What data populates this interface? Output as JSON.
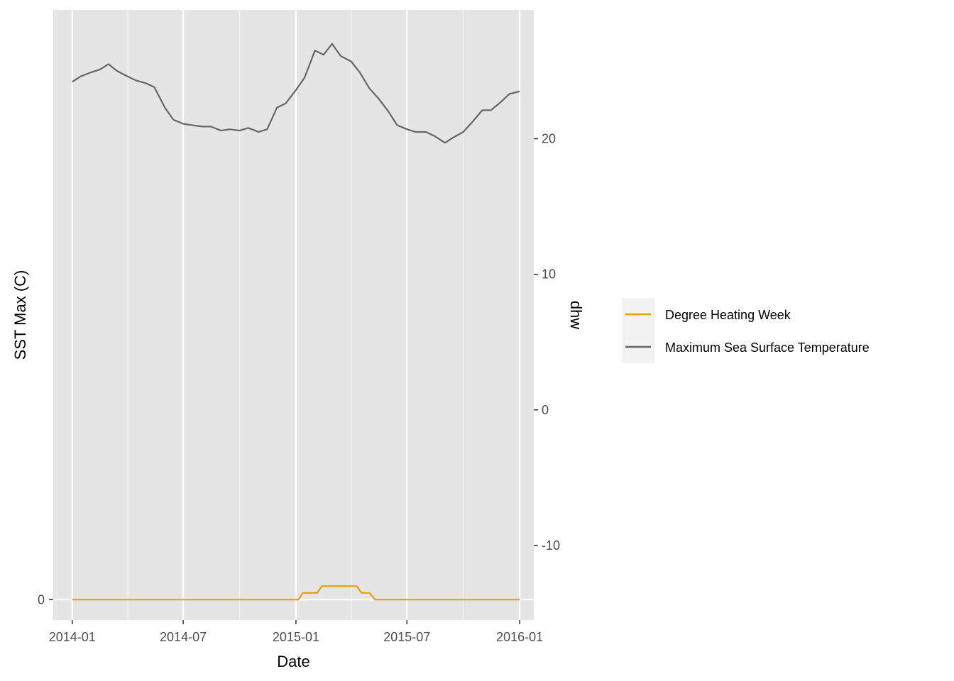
{
  "chart_data": {
    "type": "line",
    "xlabel": "Date",
    "ylabel_left": "SST Max (C)",
    "ylabel_right": "dhw",
    "x_range": [
      "2013-12-01",
      "2016-01-24"
    ],
    "x_ticks": [
      "2014-01",
      "2014-07",
      "2015-01",
      "2015-07",
      "2016-01"
    ],
    "y_left_ticks": [
      0
    ],
    "y_left_tick_labels": [
      "0"
    ],
    "y_right_range": [
      -15.5,
      29.5
    ],
    "y_right_ticks": [
      20,
      10,
      0,
      -10
    ],
    "y_right_tick_labels": [
      "20",
      "10",
      "0",
      "-10"
    ],
    "grid": true,
    "legend_position": "right",
    "series": [
      {
        "name": "Degree Heating Week",
        "color": "#E69F00",
        "axis": "right",
        "x": [
          "2014-01-01",
          "2015-01-05",
          "2015-01-12",
          "2015-01-20",
          "2015-02-05",
          "2015-02-12",
          "2015-03-01",
          "2015-04-10",
          "2015-04-18",
          "2015-05-01",
          "2015-05-10",
          "2015-05-20",
          "2016-01-01"
        ],
        "values": [
          -14,
          -14,
          -13.5,
          -13.5,
          -13.5,
          -13,
          -13,
          -13,
          -13.5,
          -13.5,
          -14,
          -14,
          -14
        ]
      },
      {
        "name": "Maximum Sea Surface Temperature",
        "color": "#666666",
        "axis": "right",
        "x": [
          "2014-01-01",
          "2014-01-15",
          "2014-02-01",
          "2014-02-15",
          "2014-03-01",
          "2014-03-15",
          "2014-04-01",
          "2014-04-15",
          "2014-05-01",
          "2014-05-15",
          "2014-06-01",
          "2014-06-15",
          "2014-07-01",
          "2014-07-15",
          "2014-08-01",
          "2014-08-15",
          "2014-09-01",
          "2014-09-15",
          "2014-10-01",
          "2014-10-15",
          "2014-11-01",
          "2014-11-15",
          "2014-12-01",
          "2014-12-15",
          "2015-01-01",
          "2015-01-15",
          "2015-02-01",
          "2015-02-15",
          "2015-03-01",
          "2015-03-15",
          "2015-04-01",
          "2015-04-15",
          "2015-05-01",
          "2015-05-15",
          "2015-06-01",
          "2015-06-15",
          "2015-07-01",
          "2015-07-15",
          "2015-08-01",
          "2015-08-15",
          "2015-09-01",
          "2015-09-15",
          "2015-10-01",
          "2015-10-15",
          "2015-11-01",
          "2015-11-15",
          "2015-12-01",
          "2015-12-15",
          "2016-01-01"
        ],
        "values": [
          24.2,
          24.6,
          24.9,
          25.1,
          25.5,
          25.0,
          24.6,
          24.3,
          24.1,
          23.8,
          22.3,
          21.4,
          21.1,
          21.0,
          20.9,
          20.9,
          20.6,
          20.7,
          20.6,
          20.8,
          20.5,
          20.7,
          22.3,
          22.6,
          23.6,
          24.5,
          26.5,
          26.2,
          27.0,
          26.1,
          25.7,
          24.9,
          23.7,
          23.0,
          22.0,
          21.0,
          20.7,
          20.5,
          20.5,
          20.2,
          19.7,
          20.1,
          20.5,
          21.2,
          22.1,
          22.1,
          22.7,
          23.3,
          23.5
        ]
      }
    ]
  }
}
